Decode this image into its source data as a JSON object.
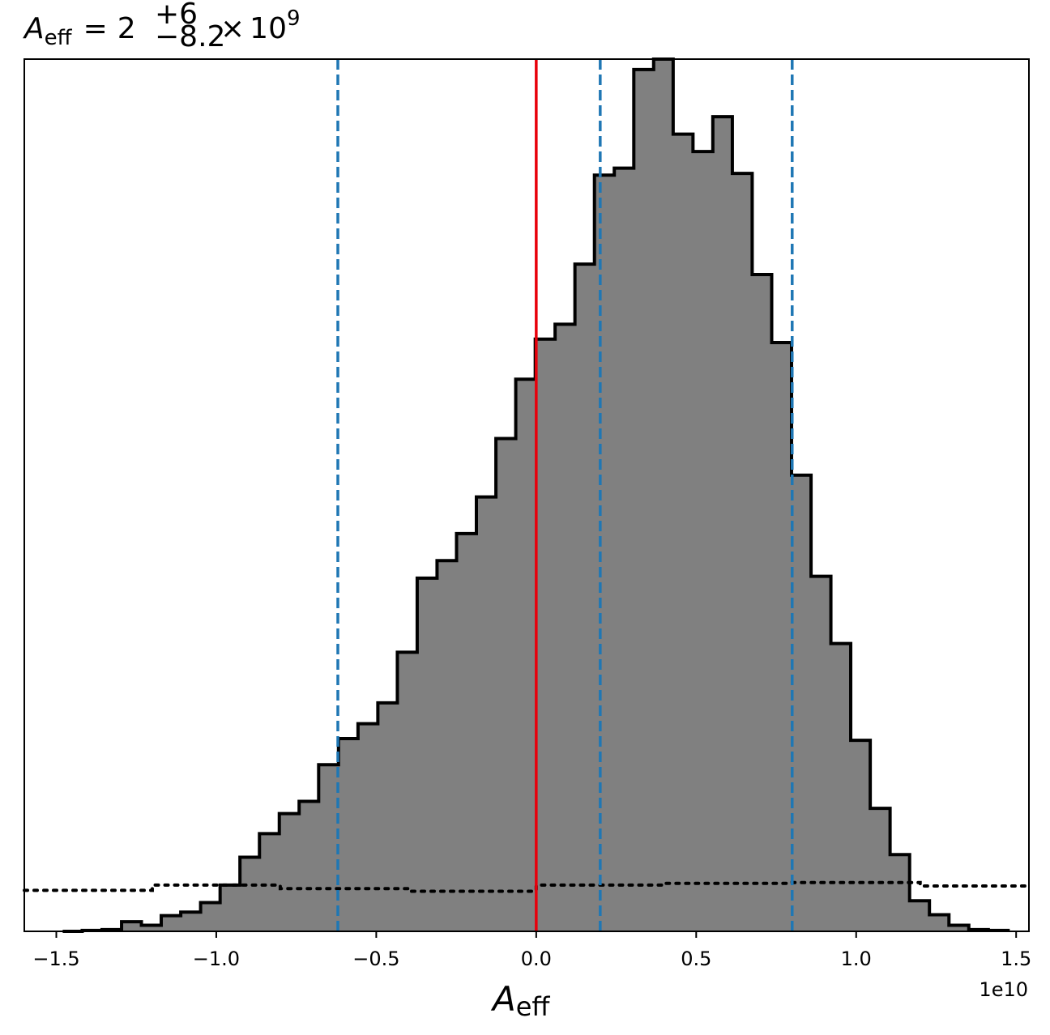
{
  "chart_data": {
    "type": "bar",
    "subtype": "histogram",
    "title": {
      "symbol": "A",
      "symbol_sub": "eff",
      "equals": "=",
      "mantissa": "2",
      "upper": "+6",
      "lower": "−8.2",
      "times": "×",
      "base": "10",
      "exponent": "9"
    },
    "xlabel": {
      "symbol": "A",
      "symbol_sub": "eff"
    },
    "x_offset_label": "1e10",
    "xlim": [
      -1.6,
      1.54
    ],
    "ylim": [
      0,
      1000
    ],
    "x_scale_note": "x values in units of 1e10",
    "x_ticks": [
      {
        "value": -1.5,
        "label": "−1.5"
      },
      {
        "value": -1.0,
        "label": "−1.0"
      },
      {
        "value": -0.5,
        "label": "−0.5"
      },
      {
        "value": 0.0,
        "label": "0.0"
      },
      {
        "value": 0.5,
        "label": "0.5"
      },
      {
        "value": 1.0,
        "label": "1.0"
      },
      {
        "value": 1.5,
        "label": "1.5"
      }
    ],
    "bins": {
      "edges": [
        -1.48,
        -1.419,
        -1.357,
        -1.296,
        -1.234,
        -1.172,
        -1.111,
        -1.049,
        -0.988,
        -0.926,
        -0.865,
        -0.803,
        -0.741,
        -0.68,
        -0.618,
        -0.557,
        -0.495,
        -0.434,
        -0.372,
        -0.31,
        -0.249,
        -0.187,
        -0.126,
        -0.064,
        -0.003,
        0.059,
        0.121,
        0.182,
        0.244,
        0.305,
        0.367,
        0.428,
        0.49,
        0.552,
        0.613,
        0.675,
        0.736,
        0.798,
        0.859,
        0.921,
        0.983,
        1.044,
        1.106,
        1.167,
        1.229,
        1.29,
        1.352,
        1.413,
        1.475
      ],
      "counts": [
        0,
        1,
        2,
        11,
        7,
        18,
        22,
        33,
        53,
        85,
        112,
        135,
        149,
        191,
        221,
        238,
        262,
        320,
        405,
        425,
        456,
        498,
        565,
        633,
        679,
        696,
        765,
        867,
        875,
        988,
        1000,
        914,
        894,
        934,
        869,
        753,
        675,
        523,
        407,
        330,
        219,
        141,
        88,
        35,
        19,
        7,
        2,
        1
      ]
    },
    "series": [
      {
        "type": "histogram",
        "fill": "#808080",
        "edge": "#000000"
      },
      {
        "type": "prior-dotted",
        "color": "#000000",
        "x": [
          -1.6,
          -1.2,
          -1.2,
          -0.8,
          -0.8,
          -0.4,
          -0.4,
          0.0,
          0.0,
          0.4,
          0.4,
          0.8,
          0.8,
          1.2,
          1.2,
          1.54
        ],
        "y": [
          47,
          47,
          53,
          53,
          49,
          49,
          46,
          46,
          53,
          53,
          55,
          55,
          56,
          56,
          52,
          52
        ]
      }
    ],
    "vertical_lines": [
      {
        "x": 0.0,
        "style": "solid",
        "color": "#e8000b"
      },
      {
        "x": -0.62,
        "style": "dashed",
        "color": "#1f77b4"
      },
      {
        "x": 0.2,
        "style": "dashed",
        "color": "#1f77b4"
      },
      {
        "x": 0.8,
        "style": "dashed",
        "color": "#1f77b4"
      }
    ],
    "grid": false,
    "legend": "none"
  }
}
